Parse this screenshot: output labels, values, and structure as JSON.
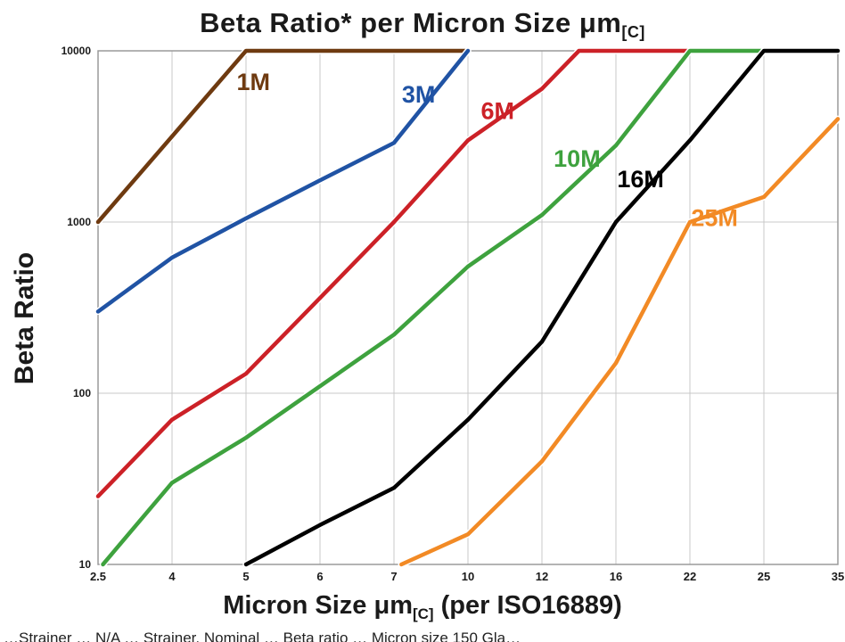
{
  "title": {
    "main": "Beta Ratio* per Micron Size μm",
    "subscript": "[C]"
  },
  "y_axis": {
    "label": "Beta Ratio",
    "ticks": [
      10,
      100,
      1000,
      10000
    ]
  },
  "x_axis": {
    "label_pre": "Micron Size μm",
    "label_sub": "[C]",
    "label_post": " (per ISO16889)",
    "categories": [
      2.5,
      4,
      5,
      6,
      7,
      10,
      12,
      16,
      22,
      25,
      35
    ]
  },
  "footnote": "…Strainer … N/A … Strainer, Nominal … Beta ratio … Micron size 150 Gla…",
  "colors": {
    "grid": "#c9c9c9",
    "plot_border": "#9a9a9a",
    "tick_text": "#1a1a1a",
    "line_casing": "#ffffff"
  },
  "chart_data": {
    "type": "line",
    "title": "Beta Ratio* per Micron Size μm[C]",
    "xlabel": "Micron Size μm[C] (per ISO16889)",
    "ylabel": "Beta Ratio",
    "x_scale": "category",
    "y_scale": "log",
    "ylim": [
      10,
      10000
    ],
    "grid": true,
    "legend_position": "inline-labels",
    "categories": [
      2.5,
      4,
      5,
      6,
      7,
      10,
      12,
      16,
      22,
      25,
      35
    ],
    "series": [
      {
        "name": "1M",
        "color": "#6e3a10",
        "label_at": [
          5.1,
          5900
        ],
        "points": [
          [
            2.5,
            1000
          ],
          [
            5,
            10000
          ],
          [
            10,
            10000
          ]
        ]
      },
      {
        "name": "3M",
        "color": "#2053a4",
        "label_at": [
          8.0,
          5000
        ],
        "points": [
          [
            2.5,
            300
          ],
          [
            4,
            620
          ],
          [
            5,
            1050
          ],
          [
            6,
            1750
          ],
          [
            7,
            2900
          ],
          [
            10,
            10000
          ]
        ]
      },
      {
        "name": "6M",
        "color": "#cc2127",
        "label_at": [
          10.8,
          4000
        ],
        "points": [
          [
            2.5,
            25
          ],
          [
            4,
            70
          ],
          [
            5,
            130
          ],
          [
            6,
            360
          ],
          [
            7,
            1000
          ],
          [
            10,
            3000
          ],
          [
            12,
            6000
          ],
          [
            14,
            10000
          ],
          [
            22,
            10000
          ]
        ]
      },
      {
        "name": "10M",
        "color": "#3ea23e",
        "label_at": [
          13.9,
          2100
        ],
        "points": [
          [
            2.6,
            10
          ],
          [
            4,
            30
          ],
          [
            5,
            55
          ],
          [
            6,
            110
          ],
          [
            7,
            220
          ],
          [
            10,
            550
          ],
          [
            12,
            1100
          ],
          [
            16,
            2800
          ],
          [
            22,
            10000
          ],
          [
            25,
            10000
          ]
        ]
      },
      {
        "name": "16M",
        "color": "#000000",
        "label_at": [
          18,
          1600
        ],
        "points": [
          [
            5,
            10
          ],
          [
            6,
            17
          ],
          [
            7,
            28
          ],
          [
            10,
            70
          ],
          [
            12,
            200
          ],
          [
            16,
            1000
          ],
          [
            22,
            3000
          ],
          [
            25,
            10000
          ],
          [
            35,
            10000
          ]
        ]
      },
      {
        "name": "25M",
        "color": "#f28a25",
        "label_at": [
          23,
          950
        ],
        "points": [
          [
            7.3,
            10
          ],
          [
            10,
            15
          ],
          [
            12,
            40
          ],
          [
            16,
            150
          ],
          [
            22,
            1000
          ],
          [
            25,
            1400
          ],
          [
            35,
            4000
          ]
        ]
      }
    ]
  }
}
